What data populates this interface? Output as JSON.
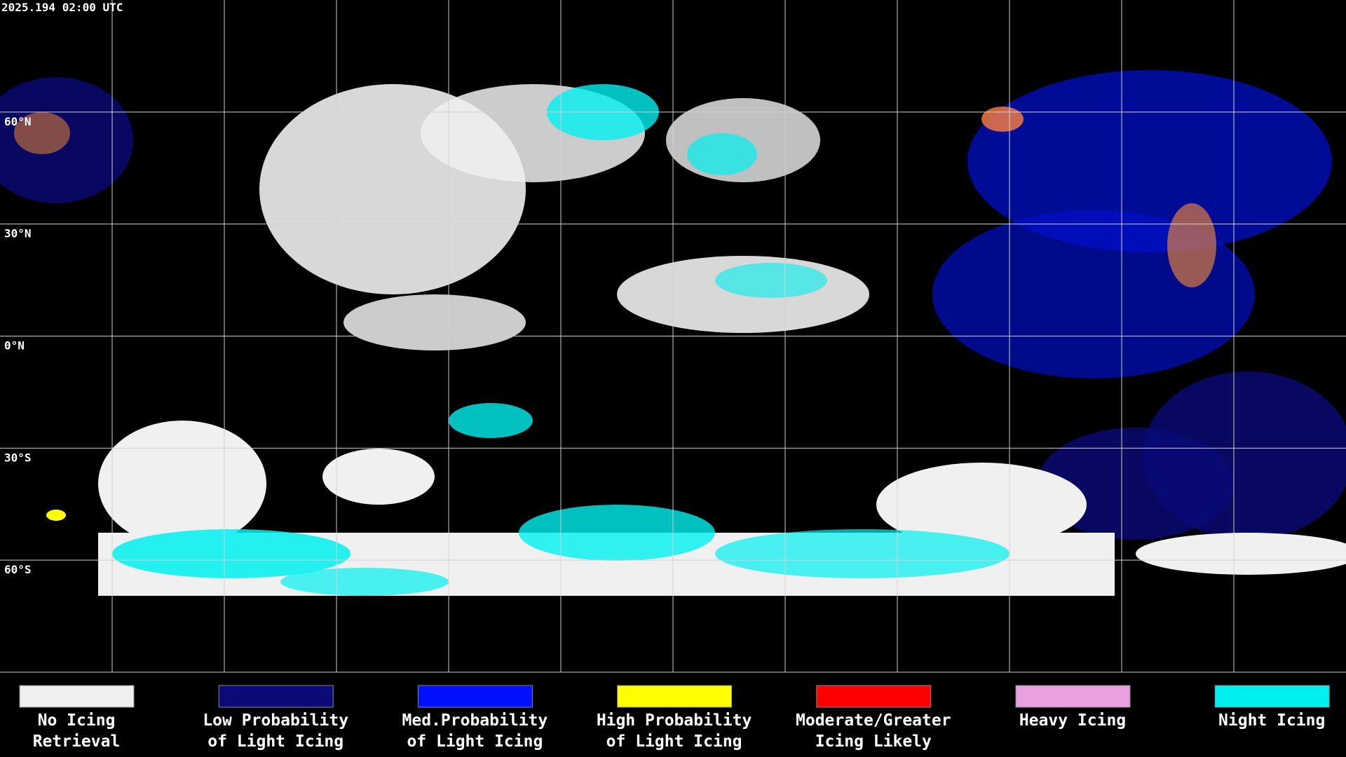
{
  "header": {
    "timestamp": "2025.194 02:00 UTC"
  },
  "map": {
    "lat_labels": [
      "60°N",
      "30°N",
      "0°N",
      "30°S",
      "60°S"
    ]
  },
  "legend": {
    "items": [
      {
        "lines": [
          "No Icing",
          "Retrieval"
        ],
        "color": "#f0f0f0"
      },
      {
        "lines": [
          "Low Probability",
          "of Light Icing"
        ],
        "color": "#0a0a78"
      },
      {
        "lines": [
          "Med.Probability",
          "of Light Icing"
        ],
        "color": "#0010ff"
      },
      {
        "lines": [
          "High Probability",
          "of Light Icing"
        ],
        "color": "#ffff00"
      },
      {
        "lines": [
          "Moderate/Greater",
          "Icing Likely"
        ],
        "color": "#ff0000"
      },
      {
        "lines": [
          "Heavy Icing"
        ],
        "color": "#e8a0e0"
      },
      {
        "lines": [
          "Night Icing"
        ],
        "color": "#00f0f0"
      }
    ]
  }
}
